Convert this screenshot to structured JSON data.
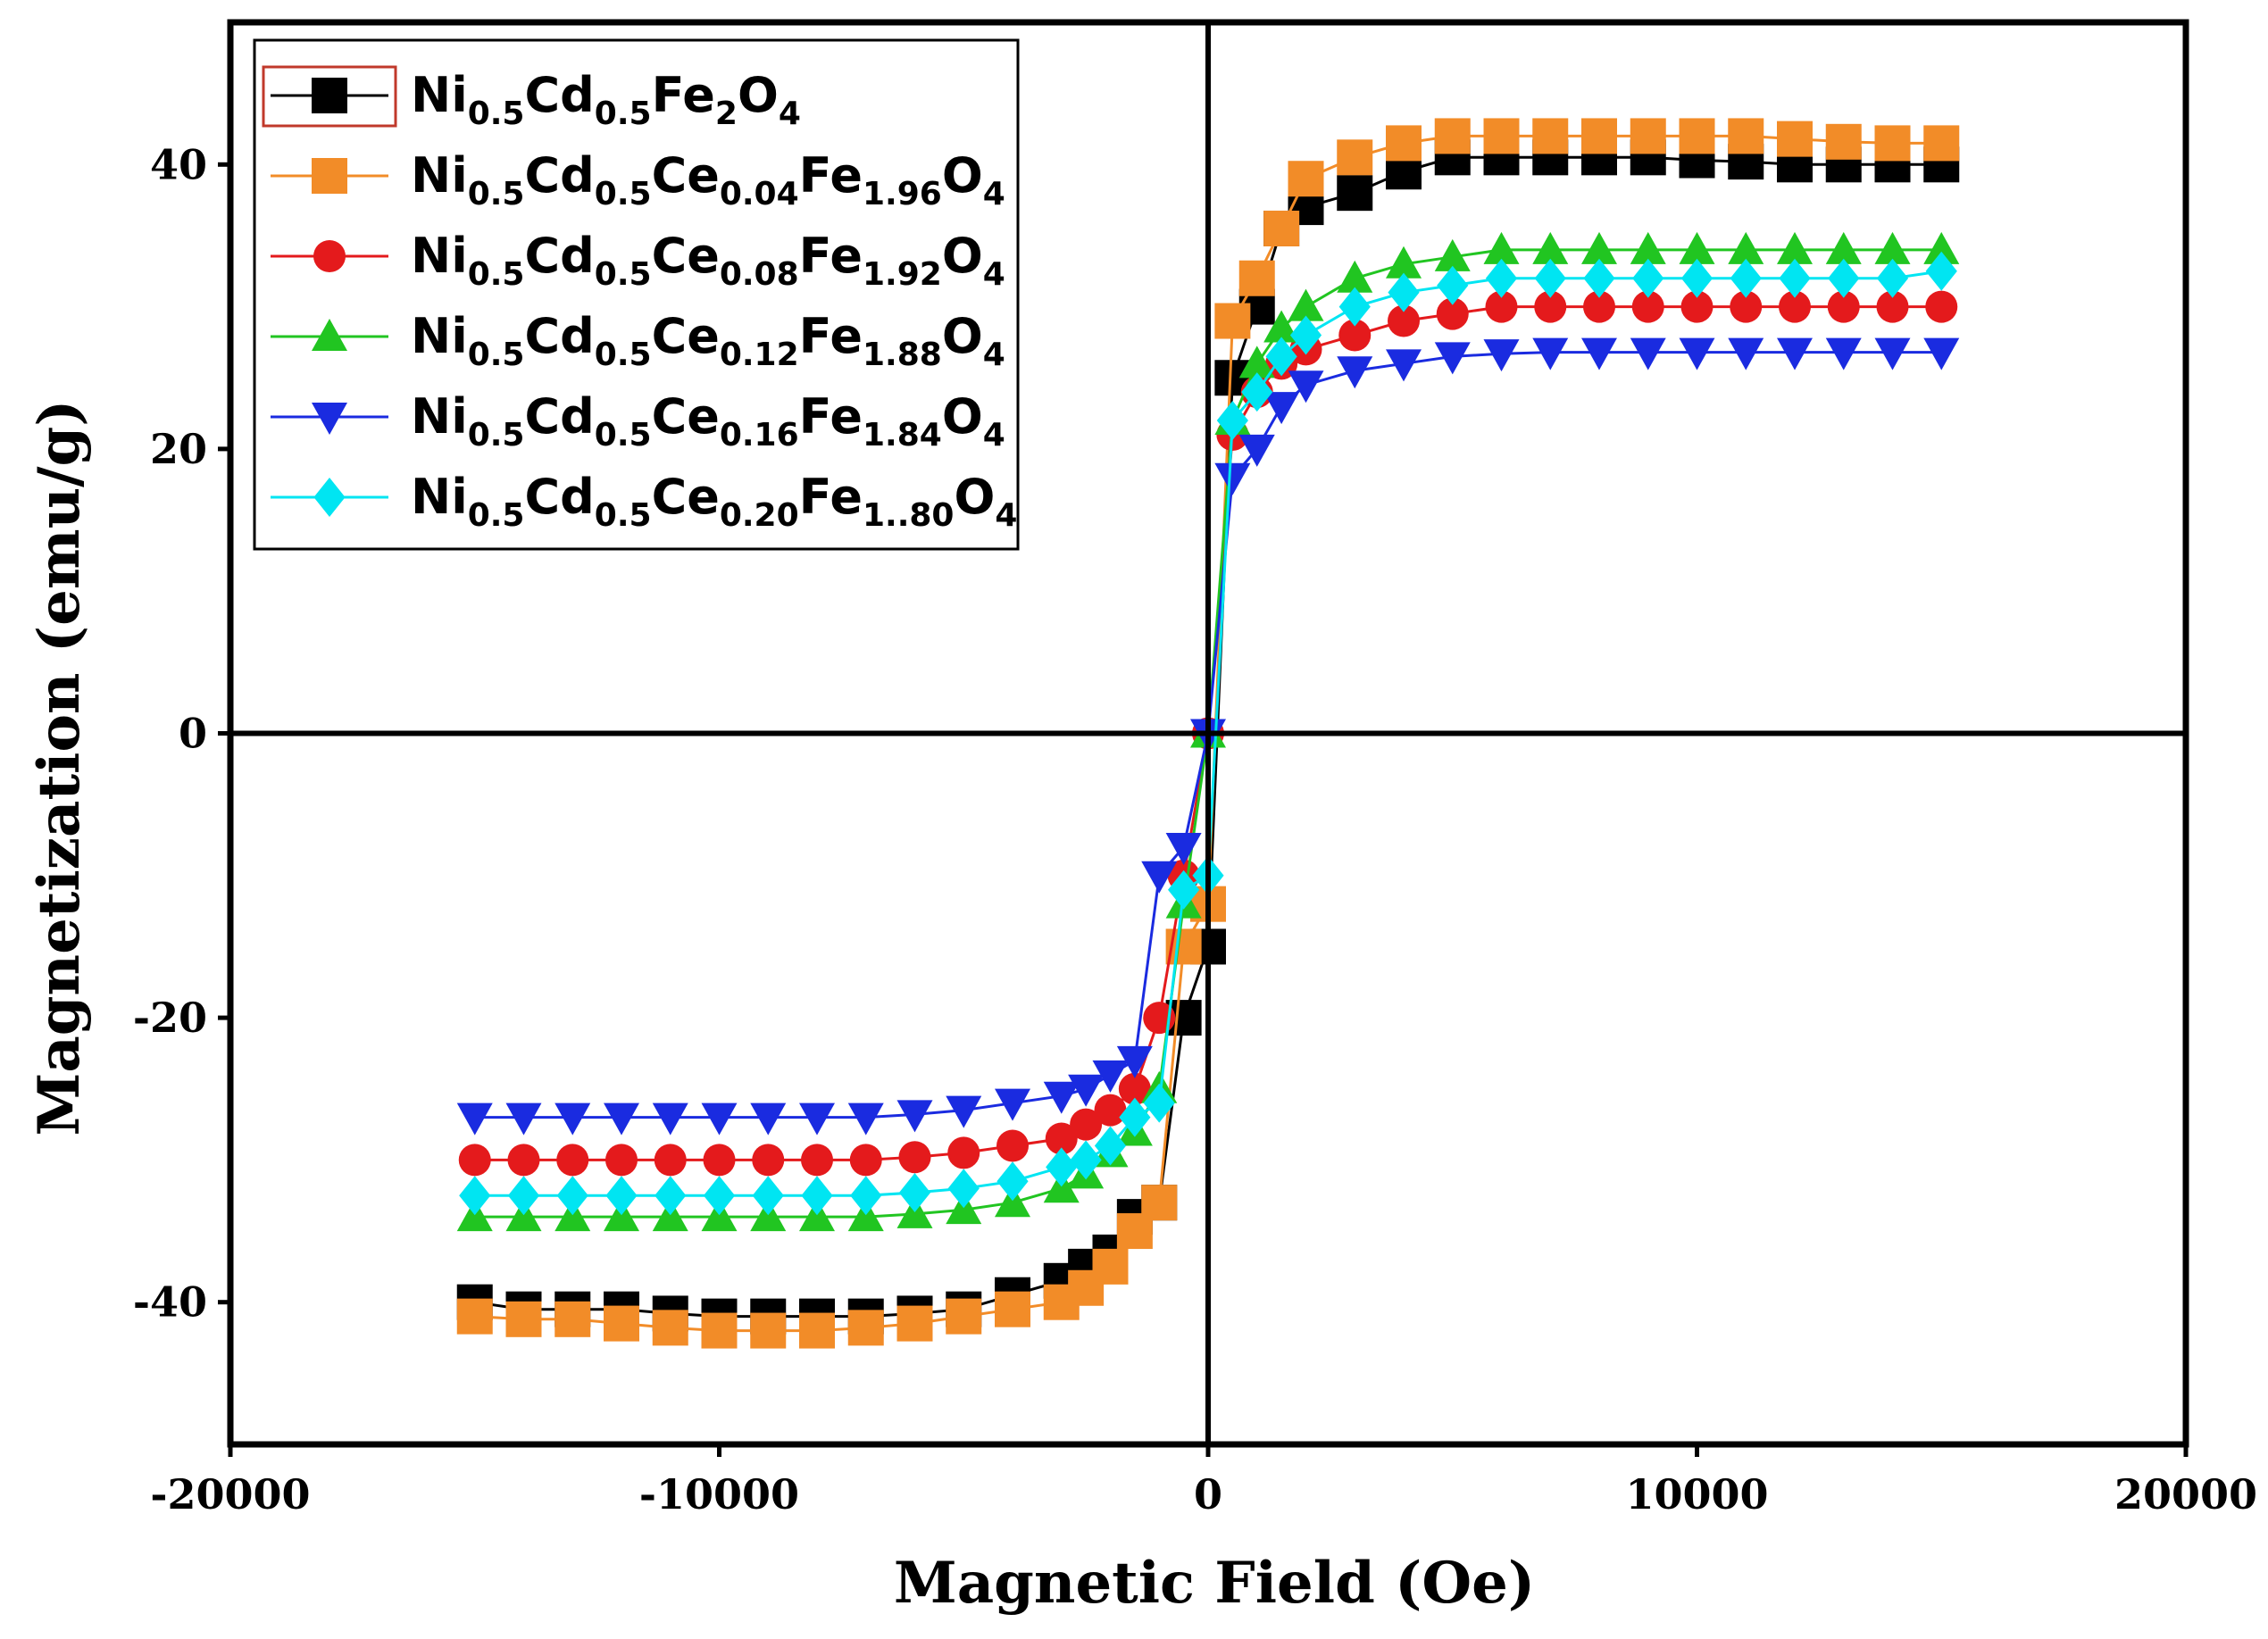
{
  "chart_data": {
    "type": "line",
    "xlabel": "Magnetic Field (Oe)",
    "ylabel": "Magnetization (emu/g)",
    "xlim": [
      -20000,
      20000
    ],
    "ylim": [
      -50,
      50
    ],
    "xticks": [
      -20000,
      -10000,
      0,
      10000,
      20000
    ],
    "yticks": [
      -40,
      -20,
      0,
      20,
      40
    ],
    "legend_position": "top-left",
    "series": [
      {
        "name": "Ni0.5Cd0.5Fe2O4",
        "label_parts": [
          [
            "Ni",
            ""
          ],
          [
            "0.5",
            "sub"
          ],
          [
            "Cd",
            ""
          ],
          [
            "0.5",
            "sub"
          ],
          [
            "Fe",
            ""
          ],
          [
            "2",
            "sub"
          ],
          [
            "O",
            ""
          ],
          [
            "4",
            "sub"
          ]
        ],
        "color": "#000000",
        "marker": "square",
        "ms": 40,
        "x": [
          -15000,
          -14000,
          -13000,
          -12000,
          -11000,
          -10000,
          -9000,
          -8000,
          -7000,
          -6000,
          -5000,
          -4000,
          -3000,
          -2500,
          -2000,
          -1500,
          -1000,
          -500,
          0,
          500,
          1000,
          1500,
          2000,
          3000,
          4000,
          5000,
          6000,
          7000,
          8000,
          9000,
          10000,
          11000,
          12000,
          13000,
          14000,
          15000
        ],
        "y": [
          -40,
          -40.5,
          -40.5,
          -40.5,
          -40.8,
          -41,
          -41,
          -41,
          -41,
          -40.8,
          -40.5,
          -39.5,
          -38.5,
          -37.5,
          -36.5,
          -34,
          -33,
          -20,
          -15,
          25,
          30,
          35.5,
          37,
          38,
          39.5,
          40.5,
          40.5,
          40.5,
          40.5,
          40.5,
          40.3,
          40.2,
          40,
          40,
          40,
          40
        ]
      },
      {
        "name": "Ni0.5Cd0.5Ce0.04Fe1.96O4",
        "label_parts": [
          [
            "Ni",
            ""
          ],
          [
            "0.5",
            "sub"
          ],
          [
            "Cd",
            ""
          ],
          [
            "0.5",
            "sub"
          ],
          [
            "Ce",
            ""
          ],
          [
            "0.04",
            "sub"
          ],
          [
            "Fe",
            ""
          ],
          [
            "1.96",
            "sub"
          ],
          [
            "O",
            ""
          ],
          [
            "4",
            "sub"
          ]
        ],
        "color": "#F28C28",
        "marker": "square",
        "ms": 40,
        "x": [
          -15000,
          -14000,
          -13000,
          -12000,
          -11000,
          -10000,
          -9000,
          -8000,
          -7000,
          -6000,
          -5000,
          -4000,
          -3000,
          -2500,
          -2000,
          -1500,
          -1000,
          -500,
          0,
          500,
          1000,
          1500,
          2000,
          3000,
          4000,
          5000,
          6000,
          7000,
          8000,
          9000,
          10000,
          11000,
          12000,
          13000,
          14000,
          15000
        ],
        "y": [
          -41,
          -41.2,
          -41.2,
          -41.5,
          -41.8,
          -42,
          -42,
          -42,
          -41.8,
          -41.5,
          -41,
          -40.5,
          -40,
          -39,
          -37.5,
          -35,
          -33,
          -15,
          -12,
          29,
          32,
          35.5,
          39,
          40.5,
          41.5,
          42,
          42,
          42,
          42,
          42,
          42,
          42,
          41.8,
          41.6,
          41.5,
          41.5
        ]
      },
      {
        "name": "Ni0.5Cd0.5Ce0.08Fe1.92O4",
        "label_parts": [
          [
            "Ni",
            ""
          ],
          [
            "0.5",
            "sub"
          ],
          [
            "Cd",
            ""
          ],
          [
            "0.5",
            "sub"
          ],
          [
            "Ce",
            ""
          ],
          [
            "0.08",
            "sub"
          ],
          [
            "Fe",
            ""
          ],
          [
            "1.92",
            "sub"
          ],
          [
            "O",
            ""
          ],
          [
            "4",
            "sub"
          ]
        ],
        "color": "#E41A1C",
        "marker": "circle",
        "ms": 36,
        "x": [
          -15000,
          -14000,
          -13000,
          -12000,
          -11000,
          -10000,
          -9000,
          -8000,
          -7000,
          -6000,
          -5000,
          -4000,
          -3000,
          -2500,
          -2000,
          -1500,
          -1000,
          -500,
          0,
          500,
          1000,
          1500,
          2000,
          3000,
          4000,
          5000,
          6000,
          7000,
          8000,
          9000,
          10000,
          11000,
          12000,
          13000,
          14000,
          15000
        ],
        "y": [
          -30,
          -30,
          -30,
          -30,
          -30,
          -30,
          -30,
          -30,
          -30,
          -29.8,
          -29.5,
          -29,
          -28.5,
          -27.5,
          -26.5,
          -25,
          -20,
          -10,
          0,
          21,
          24,
          26,
          27,
          28,
          29,
          29.5,
          30,
          30,
          30,
          30,
          30,
          30,
          30,
          30,
          30,
          30
        ]
      },
      {
        "name": "Ni0.5Cd0.5Ce0.12Fe1.88O4",
        "label_parts": [
          [
            "Ni",
            ""
          ],
          [
            "0.5",
            "sub"
          ],
          [
            "Cd",
            ""
          ],
          [
            "0.5",
            "sub"
          ],
          [
            "Ce",
            ""
          ],
          [
            "0.12",
            "sub"
          ],
          [
            "Fe",
            ""
          ],
          [
            "1.88",
            "sub"
          ],
          [
            "O",
            ""
          ],
          [
            "4",
            "sub"
          ]
        ],
        "color": "#21C521",
        "marker": "triangle-up",
        "ms": 40,
        "x": [
          -15000,
          -14000,
          -13000,
          -12000,
          -11000,
          -10000,
          -9000,
          -8000,
          -7000,
          -6000,
          -5000,
          -4000,
          -3000,
          -2500,
          -2000,
          -1500,
          -1000,
          -500,
          0,
          500,
          1000,
          1500,
          2000,
          3000,
          4000,
          5000,
          6000,
          7000,
          8000,
          9000,
          10000,
          11000,
          12000,
          13000,
          14000,
          15000
        ],
        "y": [
          -34,
          -34,
          -34,
          -34,
          -34,
          -34,
          -34,
          -34,
          -34,
          -33.8,
          -33.5,
          -33,
          -32,
          -31,
          -29.5,
          -28,
          -25,
          -12,
          0,
          22,
          26,
          28.5,
          30,
          32,
          33,
          33.5,
          34,
          34,
          34,
          34,
          34,
          34,
          34,
          34,
          34,
          34
        ]
      },
      {
        "name": "Ni0.5Cd0.5Ce0.16Fe1.84O4",
        "label_parts": [
          [
            "Ni",
            ""
          ],
          [
            "0.5",
            "sub"
          ],
          [
            "Cd",
            ""
          ],
          [
            "0.5",
            "sub"
          ],
          [
            "Ce",
            ""
          ],
          [
            "0.16",
            "sub"
          ],
          [
            "Fe",
            ""
          ],
          [
            "1.84",
            "sub"
          ],
          [
            "O",
            ""
          ],
          [
            "4",
            "sub"
          ]
        ],
        "color": "#1A2BE0",
        "marker": "triangle-down",
        "ms": 40,
        "x": [
          -15000,
          -14000,
          -13000,
          -12000,
          -11000,
          -10000,
          -9000,
          -8000,
          -7000,
          -6000,
          -5000,
          -4000,
          -3000,
          -2500,
          -2000,
          -1500,
          -1000,
          -500,
          0,
          500,
          1000,
          1500,
          2000,
          3000,
          4000,
          5000,
          6000,
          7000,
          8000,
          9000,
          10000,
          11000,
          12000,
          13000,
          14000,
          15000
        ],
        "y": [
          -27,
          -27,
          -27,
          -27,
          -27,
          -27,
          -27,
          -27,
          -27,
          -26.8,
          -26.5,
          -26,
          -25.5,
          -25,
          -24,
          -23,
          -10,
          -8,
          0,
          18,
          20,
          23,
          24.5,
          25.5,
          26,
          26.5,
          26.7,
          26.8,
          26.8,
          26.8,
          26.8,
          26.8,
          26.8,
          26.8,
          26.8,
          26.8
        ]
      },
      {
        "name": "Ni0.5Cd0.5Ce0.20Fe1..80O4",
        "label_parts": [
          [
            "Ni",
            ""
          ],
          [
            "0.5",
            "sub"
          ],
          [
            "Cd",
            ""
          ],
          [
            "0.5",
            "sub"
          ],
          [
            "Ce",
            ""
          ],
          [
            "0.20",
            "sub"
          ],
          [
            "Fe",
            ""
          ],
          [
            "1..80",
            "sub"
          ],
          [
            "O",
            ""
          ],
          [
            "4",
            "sub"
          ]
        ],
        "color": "#00E5F2",
        "marker": "diamond",
        "ms": 44,
        "x": [
          -15000,
          -14000,
          -13000,
          -12000,
          -11000,
          -10000,
          -9000,
          -8000,
          -7000,
          -6000,
          -5000,
          -4000,
          -3000,
          -2500,
          -2000,
          -1500,
          -1000,
          -500,
          0,
          500,
          1000,
          1500,
          2000,
          3000,
          4000,
          5000,
          6000,
          7000,
          8000,
          9000,
          10000,
          11000,
          12000,
          13000,
          14000,
          15000
        ],
        "y": [
          -32.5,
          -32.5,
          -32.5,
          -32.5,
          -32.5,
          -32.5,
          -32.5,
          -32.5,
          -32.5,
          -32.3,
          -32,
          -31.5,
          -30.5,
          -30,
          -29,
          -27,
          -26,
          -11,
          -10,
          22,
          24,
          26.5,
          28,
          30,
          31,
          31.5,
          32,
          32,
          32,
          32,
          32,
          32,
          32,
          32,
          32,
          32.5
        ]
      }
    ]
  }
}
